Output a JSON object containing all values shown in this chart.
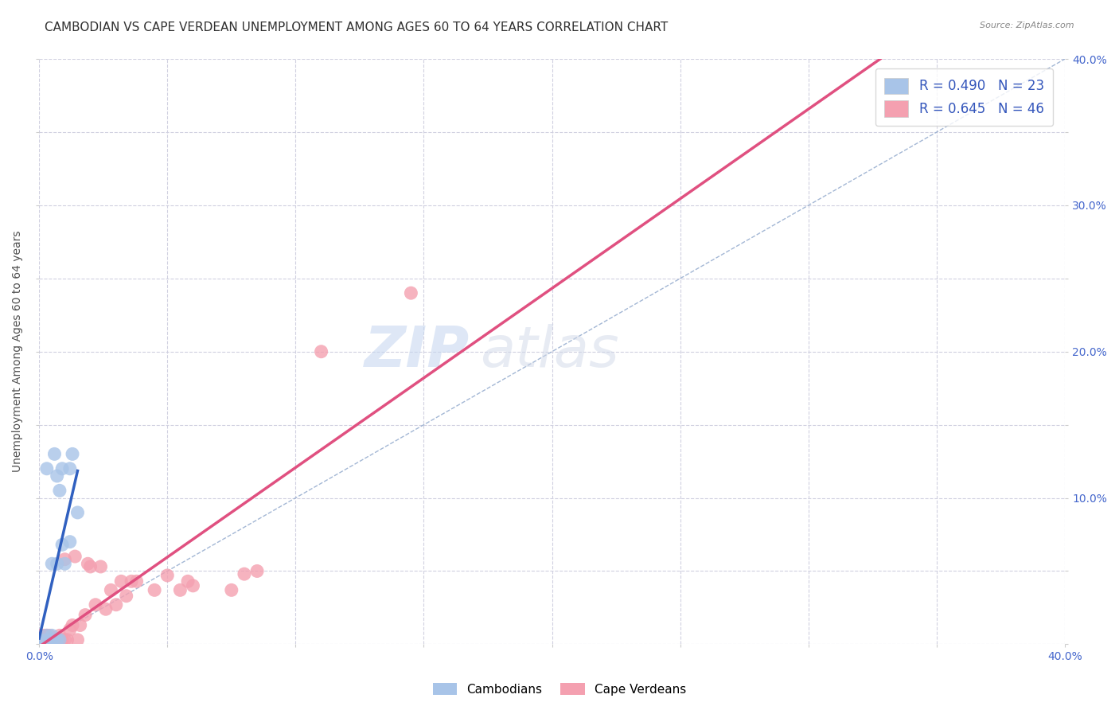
{
  "title": "CAMBODIAN VS CAPE VERDEAN UNEMPLOYMENT AMONG AGES 60 TO 64 YEARS CORRELATION CHART",
  "source": "Source: ZipAtlas.com",
  "ylabel": "Unemployment Among Ages 60 to 64 years",
  "xlim": [
    0.0,
    0.4
  ],
  "ylim": [
    0.0,
    0.4
  ],
  "cambodian_color": "#a8c4e8",
  "cape_verdean_color": "#f4a0b0",
  "cambodian_line_color": "#3060c0",
  "cape_verdean_line_color": "#e05080",
  "diagonal_color": "#99afd0",
  "legend_R_cambodian": "R = 0.490",
  "legend_N_cambodian": "N = 23",
  "legend_R_cape_verdean": "R = 0.645",
  "legend_N_cape_verdean": "N = 46",
  "watermark_zip": "ZIP",
  "watermark_atlas": "atlas",
  "background_color": "#ffffff",
  "grid_color": "#d0d0e0",
  "title_fontsize": 11,
  "axis_label_fontsize": 10,
  "tick_fontsize": 10,
  "legend_fontsize": 12,
  "watermark_fontsize_zip": 52,
  "watermark_fontsize_atlas": 52,
  "cambodian_x": [
    0.0,
    0.0,
    0.002,
    0.003,
    0.003,
    0.004,
    0.005,
    0.005,
    0.005,
    0.007,
    0.007,
    0.008,
    0.009,
    0.01,
    0.012,
    0.013,
    0.015,
    0.003,
    0.006,
    0.007,
    0.008,
    0.009,
    0.012
  ],
  "cambodian_y": [
    0.0,
    0.003,
    0.0,
    0.003,
    0.006,
    0.0,
    0.003,
    0.006,
    0.055,
    0.003,
    0.115,
    0.003,
    0.068,
    0.055,
    0.12,
    0.13,
    0.09,
    0.12,
    0.13,
    0.055,
    0.105,
    0.12,
    0.07
  ],
  "cape_verdean_x": [
    0.0,
    0.0,
    0.0,
    0.002,
    0.002,
    0.002,
    0.003,
    0.003,
    0.003,
    0.004,
    0.004,
    0.005,
    0.006,
    0.007,
    0.008,
    0.009,
    0.01,
    0.01,
    0.011,
    0.012,
    0.013,
    0.014,
    0.015,
    0.016,
    0.018,
    0.019,
    0.02,
    0.022,
    0.024,
    0.026,
    0.028,
    0.03,
    0.032,
    0.034,
    0.036,
    0.038,
    0.045,
    0.05,
    0.055,
    0.058,
    0.06,
    0.075,
    0.08,
    0.085,
    0.11,
    0.145
  ],
  "cape_verdean_y": [
    0.0,
    0.002,
    0.006,
    0.0,
    0.003,
    0.006,
    0.0,
    0.003,
    0.006,
    0.0,
    0.006,
    0.003,
    0.003,
    0.003,
    0.006,
    0.003,
    0.003,
    0.058,
    0.003,
    0.01,
    0.013,
    0.06,
    0.003,
    0.013,
    0.02,
    0.055,
    0.053,
    0.027,
    0.053,
    0.024,
    0.037,
    0.027,
    0.043,
    0.033,
    0.043,
    0.043,
    0.037,
    0.047,
    0.037,
    0.043,
    0.04,
    0.037,
    0.048,
    0.05,
    0.2,
    0.24
  ]
}
